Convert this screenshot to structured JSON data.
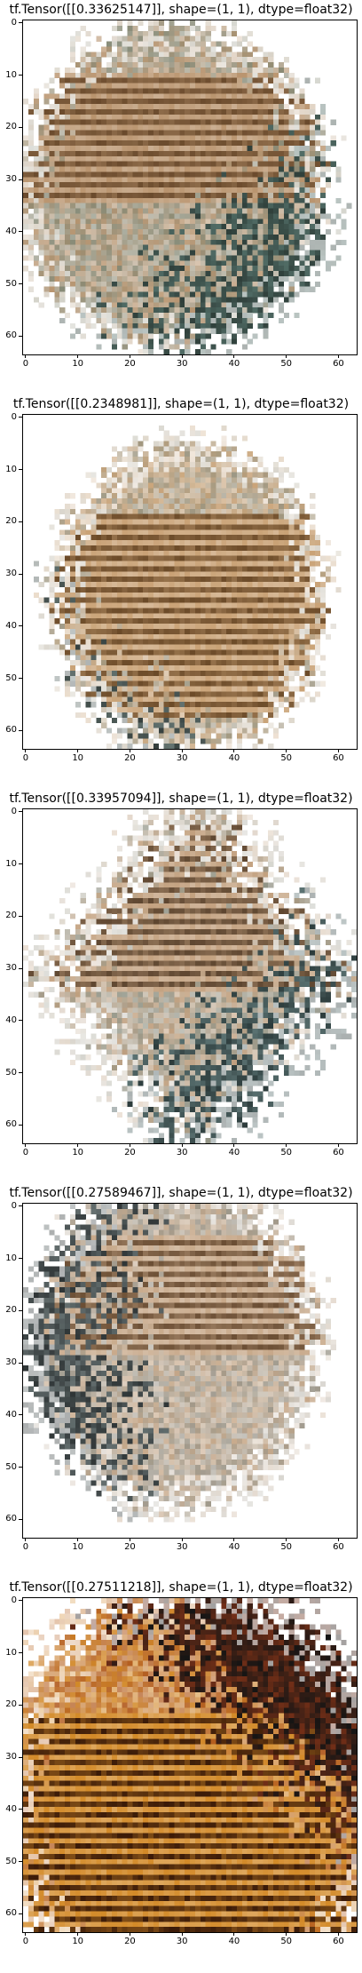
{
  "figure": {
    "panels": [
      {
        "title": "tf.Tensor([[0.33625147]], shape=(1, 1), dtype=float32)",
        "image": "generated-photo-sample-1",
        "shape": "blob-center-upper-left",
        "stripe_rows": [
          0.15,
          0.55
        ],
        "dark_region": "lower-right",
        "palette": {
          "main": "#b9946e",
          "stripe": "#6a4a2c",
          "dark": "#2f3f3a",
          "accent": "#5f7f78"
        }
      },
      {
        "title": "tf.Tensor([[0.2348981]], shape=(1, 1), dtype=float32)",
        "image": "generated-photo-sample-2",
        "shape": "blob-center",
        "stripe_rows": [
          0.3,
          0.9
        ],
        "dark_region": "left-lower",
        "palette": {
          "main": "#c9a276",
          "stripe": "#6b4a28",
          "dark": "#353f3d",
          "accent": "#7a8c88"
        }
      },
      {
        "title": "tf.Tensor([[0.33957094]], shape=(1, 1), dtype=float32)",
        "image": "generated-photo-sample-3",
        "shape": "blob-diamond",
        "stripe_rows": [
          0.05,
          0.55
        ],
        "dark_region": "lower-right",
        "palette": {
          "main": "#c2a07e",
          "stripe": "#5e4630",
          "dark": "#2c3b3b",
          "accent": "#6f8a8a"
        }
      },
      {
        "title": "tf.Tensor([[0.27589467]], shape=(1, 1), dtype=float32)",
        "image": "generated-photo-sample-4",
        "shape": "blob-upper-center",
        "stripe_rows": [
          0.1,
          0.45
        ],
        "dark_region": "left",
        "palette": {
          "main": "#c7a889",
          "stripe": "#6b4e34",
          "dark": "#2f3536",
          "accent": "#7d8a8a"
        }
      },
      {
        "title": "tf.Tensor([[0.27511218]], shape=(1, 1), dtype=float32)",
        "image": "generated-photo-sample-5",
        "shape": "blob-lower-full",
        "stripe_rows": [
          0.35,
          1.0
        ],
        "dark_region": "upper-right",
        "palette": {
          "main": "#d38a28",
          "stripe": "#3a1a08",
          "dark": "#141414",
          "accent": "#9a3a18"
        }
      }
    ],
    "x_ticks": [
      "0",
      "10",
      "20",
      "30",
      "40",
      "50",
      "60"
    ],
    "y_ticks": [
      "0",
      "10",
      "20",
      "30",
      "40",
      "50",
      "60"
    ],
    "x_range": [
      -0.5,
      63.5
    ],
    "y_range": [
      63.5,
      -0.5
    ]
  }
}
